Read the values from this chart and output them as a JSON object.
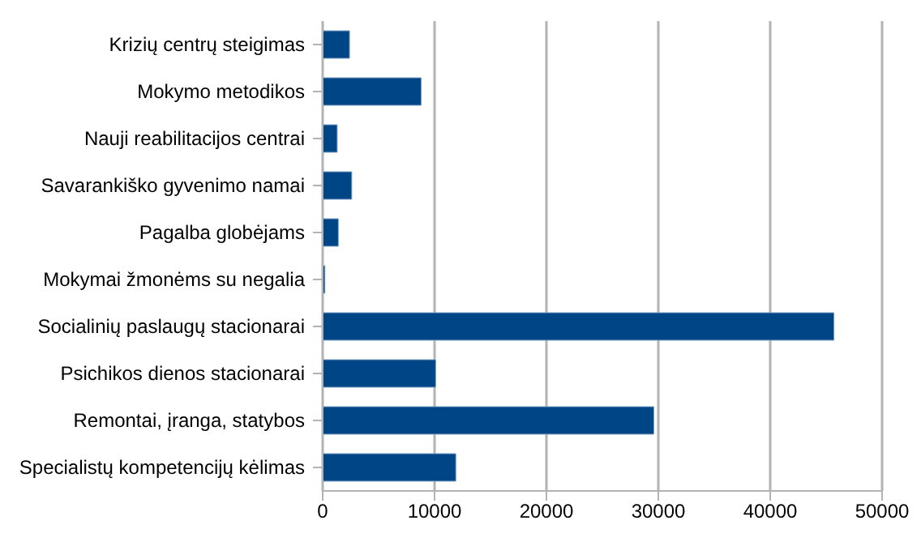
{
  "chart_data": {
    "type": "bar",
    "orientation": "horizontal",
    "categories": [
      "Krizių centrų steigimas",
      "Mokymo metodikos",
      "Nauji reabilitacijos centrai",
      "Savarankiško gyvenimo namai",
      "Pagalba globėjams",
      "Mokymai žmonėms su negalia",
      "Socialinių paslaugų stacionarai",
      "Psichikos dienos stacionarai",
      "Remontai, įranga, statybos",
      "Specialistų kompetencijų kėlimas"
    ],
    "values": [
      2400,
      8800,
      1300,
      2600,
      1400,
      200,
      45700,
      10100,
      29600,
      11900
    ],
    "color": "#004586",
    "xlim": [
      0,
      50000
    ],
    "xticks": [
      0,
      10000,
      20000,
      30000,
      40000,
      50000
    ],
    "grid": "x"
  }
}
